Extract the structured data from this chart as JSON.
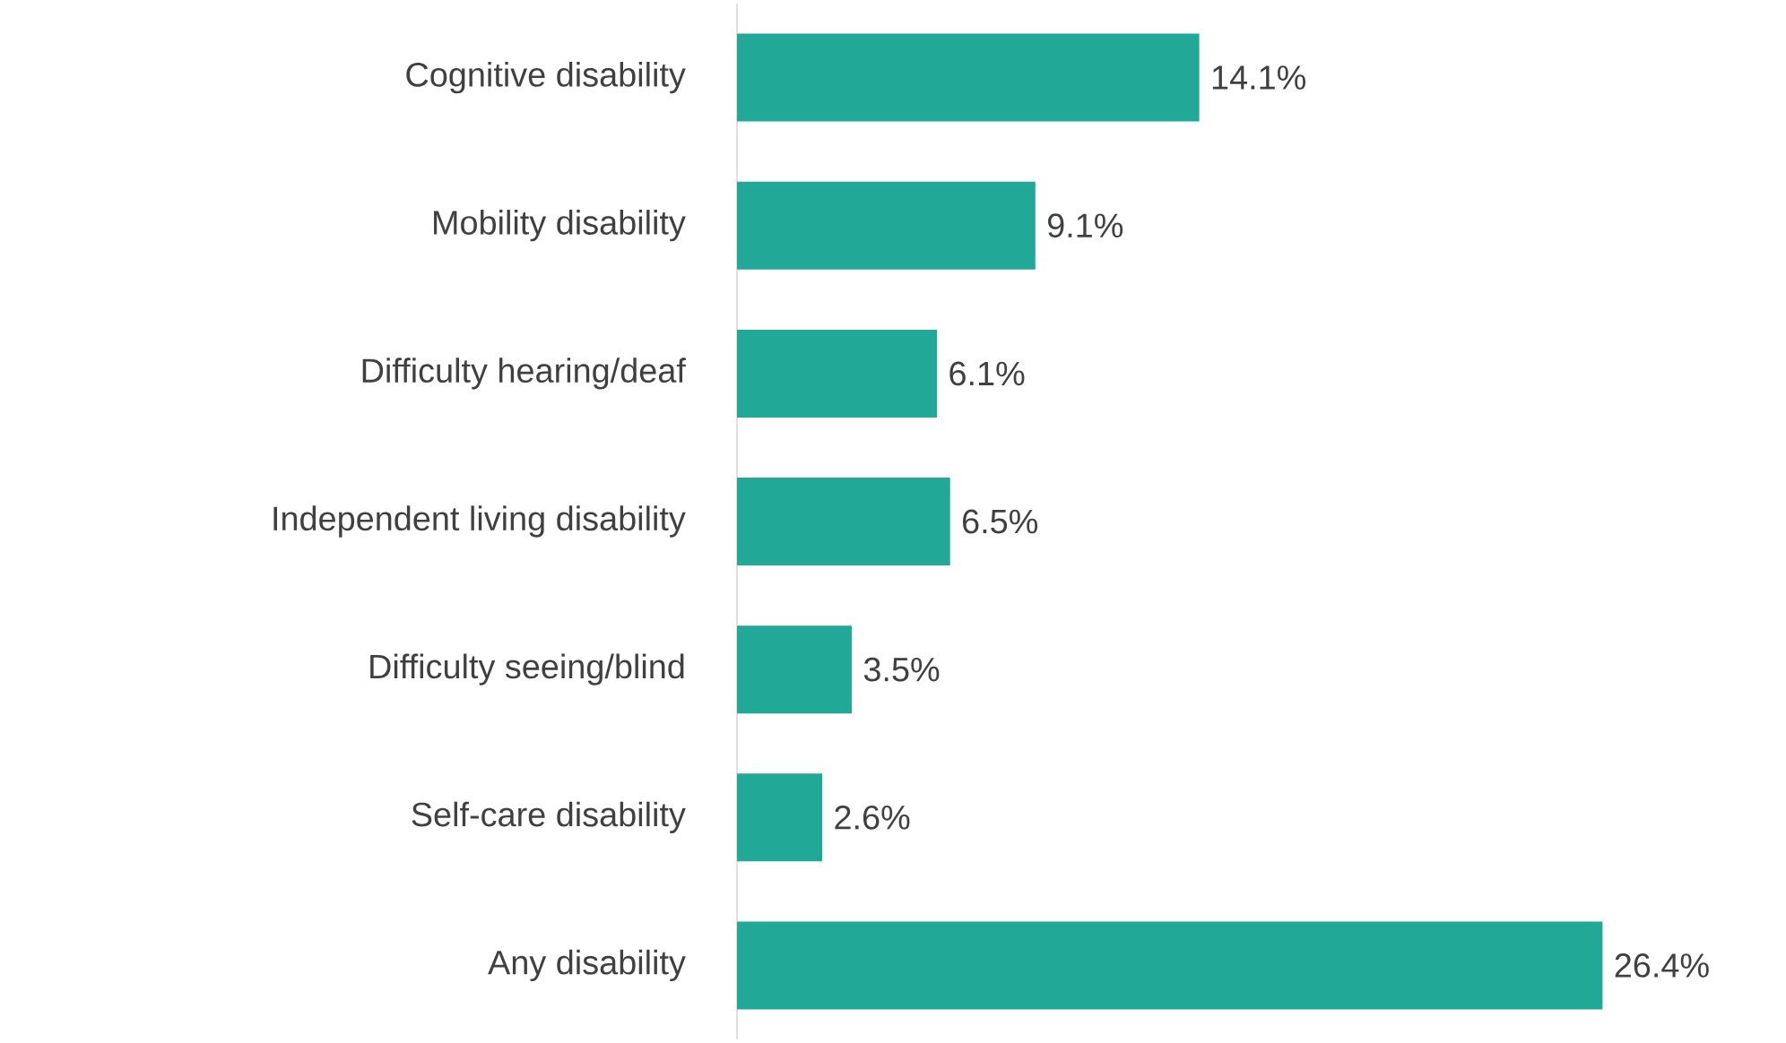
{
  "chart_data": {
    "type": "bar",
    "orientation": "horizontal",
    "categories": [
      "Cognitive disability",
      "Mobility disability",
      "Difficulty hearing/deaf",
      "Independent living disability",
      "Difficulty seeing/blind",
      "Self-care disability",
      "Any disability"
    ],
    "values": [
      14.1,
      9.1,
      6.1,
      6.5,
      3.5,
      2.6,
      26.4
    ],
    "value_labels": [
      "14.1%",
      "9.1%",
      "6.1%",
      "6.5%",
      "3.5%",
      "2.6%",
      "26.4%"
    ],
    "color": "#22a896"
  }
}
